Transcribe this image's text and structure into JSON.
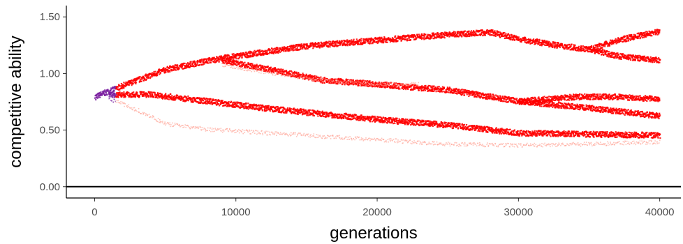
{
  "chart_data": {
    "type": "scatter",
    "title": "",
    "xlabel": "generations",
    "ylabel": "competitive ability",
    "xlim": [
      -2000,
      41500
    ],
    "ylim": [
      -0.1,
      1.6
    ],
    "x_ticks": [
      0,
      10000,
      20000,
      30000,
      40000
    ],
    "x_tick_labels": [
      "0",
      "10000",
      "20000",
      "30000",
      "40000"
    ],
    "y_ticks": [
      0.0,
      0.5,
      1.0,
      1.5
    ],
    "y_tick_labels": [
      "0.00",
      "0.50",
      "1.00",
      "1.50"
    ],
    "reference_line_y": 0.0,
    "grid": false,
    "legend": "none",
    "colors": {
      "dense": "#ff0000",
      "sparse": "#ff9a8a",
      "origin": "#7a1fa0",
      "axis": "#000000"
    },
    "lineages": [
      {
        "points": [
          [
            0,
            0.8
          ],
          [
            2000,
            0.9
          ],
          [
            5000,
            1.04
          ],
          [
            8000,
            1.12
          ],
          [
            10000,
            1.16
          ],
          [
            15000,
            1.25
          ],
          [
            20000,
            1.3
          ],
          [
            25000,
            1.35
          ],
          [
            28000,
            1.37
          ],
          [
            30000,
            1.31
          ],
          [
            33000,
            1.25
          ],
          [
            35000,
            1.22
          ],
          [
            37000,
            1.3
          ],
          [
            40000,
            1.38
          ]
        ],
        "density": "dense"
      },
      {
        "points": [
          [
            35000,
            1.22
          ],
          [
            37000,
            1.16
          ],
          [
            40000,
            1.12
          ]
        ],
        "density": "dense"
      },
      {
        "points": [
          [
            9000,
            1.12
          ],
          [
            12000,
            1.05
          ],
          [
            16000,
            0.95
          ],
          [
            20000,
            0.91
          ],
          [
            25000,
            0.86
          ],
          [
            30000,
            0.76
          ],
          [
            35000,
            0.7
          ],
          [
            40000,
            0.63
          ]
        ],
        "density": "dense"
      },
      {
        "points": [
          [
            30000,
            0.76
          ],
          [
            34000,
            0.8
          ],
          [
            37000,
            0.8
          ],
          [
            40000,
            0.78
          ]
        ],
        "density": "dense"
      },
      {
        "points": [
          [
            1000,
            0.82
          ],
          [
            4000,
            0.82
          ],
          [
            8000,
            0.76
          ],
          [
            12000,
            0.7
          ],
          [
            16000,
            0.65
          ],
          [
            20000,
            0.6
          ],
          [
            25000,
            0.55
          ],
          [
            30000,
            0.48
          ],
          [
            35000,
            0.47
          ],
          [
            40000,
            0.46
          ]
        ],
        "density": "dense"
      },
      {
        "points": [
          [
            1000,
            0.78
          ],
          [
            3000,
            0.68
          ],
          [
            5000,
            0.56
          ],
          [
            8000,
            0.51
          ],
          [
            12000,
            0.48
          ],
          [
            16000,
            0.45
          ],
          [
            20000,
            0.42
          ],
          [
            25000,
            0.38
          ],
          [
            30000,
            0.37
          ],
          [
            35000,
            0.38
          ],
          [
            40000,
            0.4
          ]
        ],
        "density": "sparse"
      },
      {
        "points": [
          [
            9000,
            1.08
          ],
          [
            13000,
            1.0
          ],
          [
            17000,
            0.93
          ],
          [
            20000,
            0.91
          ],
          [
            23000,
            0.91
          ]
        ],
        "density": "sparse"
      }
    ]
  }
}
